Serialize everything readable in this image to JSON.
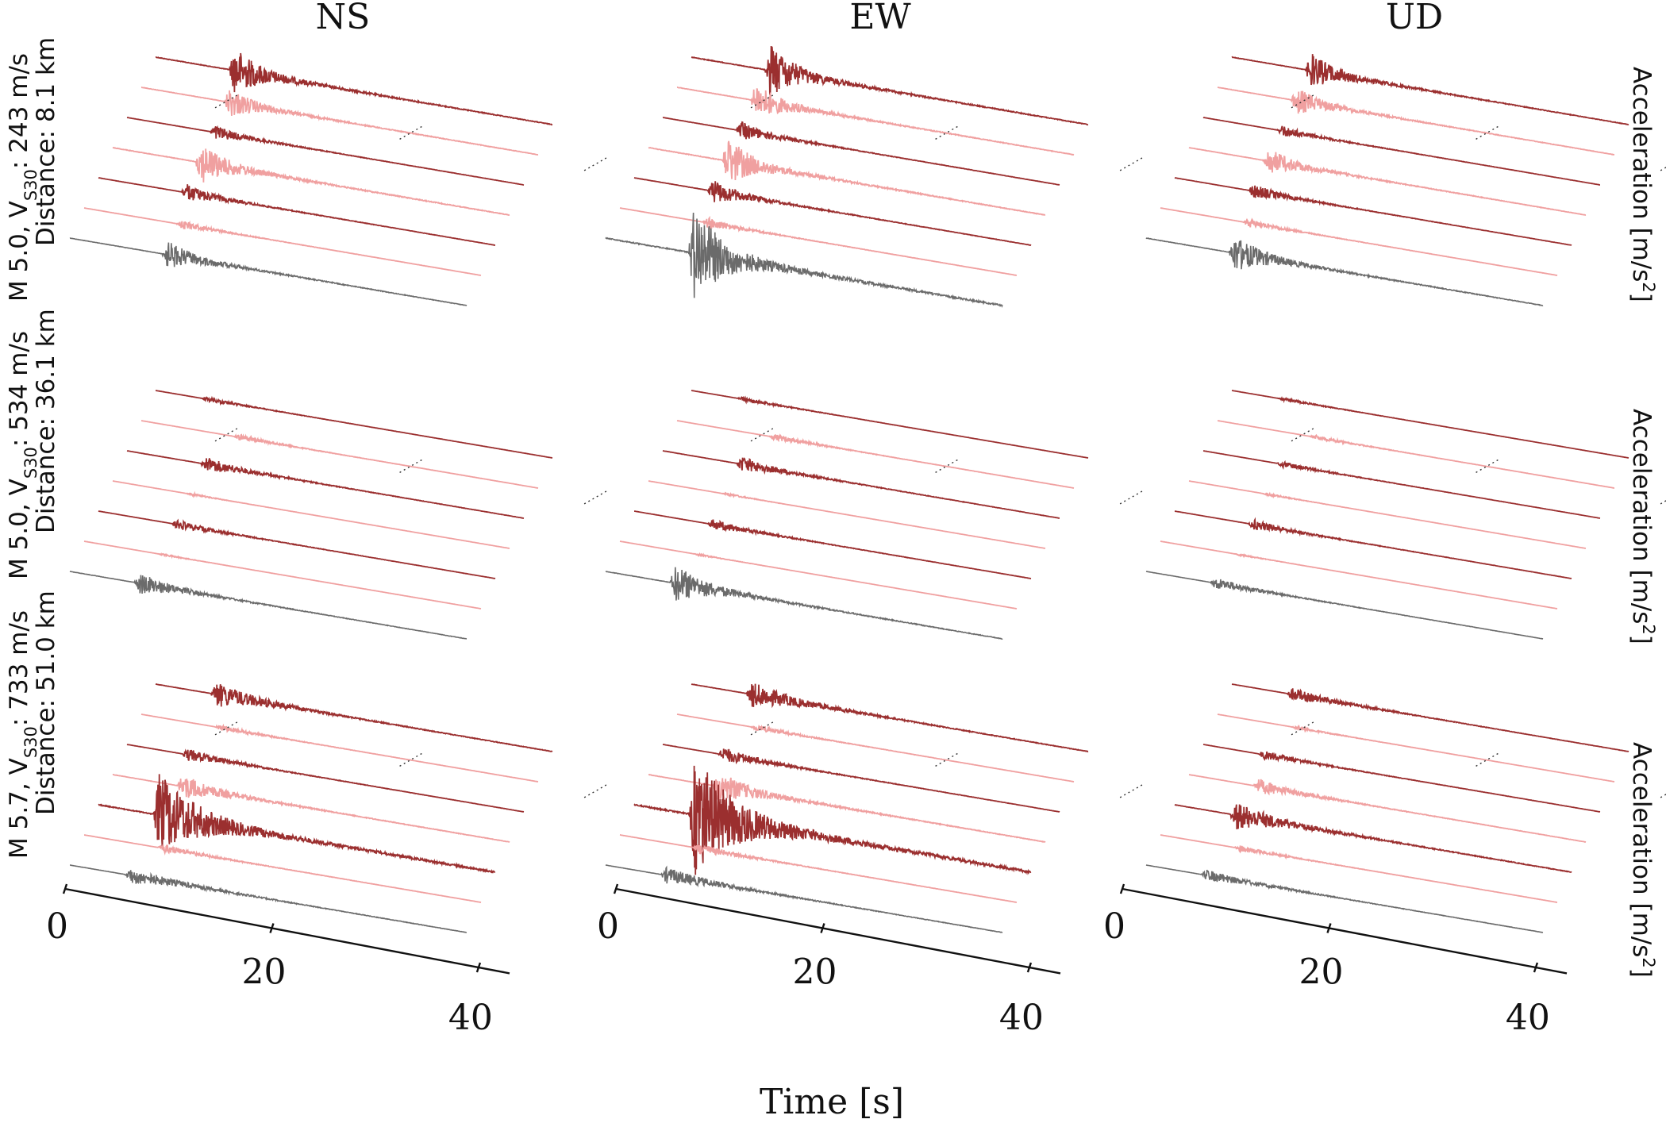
{
  "chart_data": {
    "type": "line",
    "column_titles": [
      "NS",
      "EW",
      "UD"
    ],
    "xlabel": "Time [s]",
    "ylabel_line1": "Acceleration [m/s",
    "ylabel_sup": "2",
    "ylabel_line2": "]",
    "x_ticks": [
      0,
      20,
      40
    ],
    "x_tick_labels": [
      "0",
      "20",
      "40"
    ],
    "xlim": [
      0,
      43
    ],
    "colors": {
      "reference": "#6b6b6b",
      "dark": "#9b2f2f",
      "light": "#f0a0a0",
      "axis": "#111111"
    },
    "rows": [
      {
        "label_line1": "M 5.0, V",
        "label_sub": "S30",
        "label_after_sub": ": 243 m/s",
        "label_line2": "Distance: 8.1 km",
        "traces": [
          {
            "color": "reference",
            "onset": [
              10,
              9,
              9
            ],
            "amp": [
              0.9,
              3.2,
              1.2
            ],
            "dur": 9
          },
          {
            "color": "light",
            "onset": [
              10,
              9,
              9
            ],
            "amp": [
              0.3,
              0.4,
              0.3
            ],
            "dur": 8
          },
          {
            "color": "dark",
            "onset": [
              9,
              8,
              8
            ],
            "amp": [
              0.6,
              0.8,
              0.5
            ],
            "dur": 8
          },
          {
            "color": "light",
            "onset": [
              9,
              8,
              8
            ],
            "amp": [
              1.4,
              1.6,
              0.9
            ],
            "dur": 8
          },
          {
            "color": "dark",
            "onset": [
              9,
              8,
              8
            ],
            "amp": [
              0.5,
              0.6,
              0.4
            ],
            "dur": 8
          },
          {
            "color": "light",
            "onset": [
              9,
              8,
              8
            ],
            "amp": [
              1.0,
              1.2,
              0.9
            ],
            "dur": 8
          },
          {
            "color": "dark",
            "onset": [
              8,
              8,
              8
            ],
            "amp": [
              1.6,
              1.8,
              1.2
            ],
            "dur": 8
          }
        ]
      },
      {
        "label_line1": "M 5.0, V",
        "label_sub": "S30",
        "label_after_sub": ": 534 m/s",
        "label_line2": "Distance: 36.1 km",
        "traces": [
          {
            "color": "reference",
            "onset": [
              7,
              7,
              7
            ],
            "amp": [
              0.7,
              1.2,
              0.4
            ],
            "dur": 10
          },
          {
            "color": "light",
            "onset": [
              8,
              8,
              8
            ],
            "amp": [
              0.08,
              0.08,
              0.08
            ],
            "dur": 6
          },
          {
            "color": "dark",
            "onset": [
              8,
              8,
              8
            ],
            "amp": [
              0.3,
              0.35,
              0.35
            ],
            "dur": 10
          },
          {
            "color": "light",
            "onset": [
              8,
              8,
              8
            ],
            "amp": [
              0.1,
              0.1,
              0.1
            ],
            "dur": 6
          },
          {
            "color": "dark",
            "onset": [
              8,
              8,
              8
            ],
            "amp": [
              0.5,
              0.5,
              0.2
            ],
            "dur": 10
          },
          {
            "color": "light",
            "onset": [
              10,
              10,
              10
            ],
            "amp": [
              0.2,
              0.2,
              0.15
            ],
            "dur": 10
          },
          {
            "color": "dark",
            "onset": [
              5,
              5,
              5
            ],
            "amp": [
              0.15,
              0.15,
              0.1
            ],
            "dur": 10
          }
        ]
      },
      {
        "label_line1": "M 5.7, V",
        "label_sub": "S30",
        "label_after_sub": ": 733 m/s",
        "label_line2": "Distance: 51.0 km",
        "traces": [
          {
            "color": "reference",
            "onset": [
              6,
              6,
              6
            ],
            "amp": [
              0.5,
              0.5,
              0.35
            ],
            "dur": 14
          },
          {
            "color": "light",
            "onset": [
              8,
              8,
              8
            ],
            "amp": [
              0.3,
              0.35,
              0.2
            ],
            "dur": 10
          },
          {
            "color": "dark",
            "onset": [
              6,
              6,
              6
            ],
            "amp": [
              2.6,
              3.8,
              0.9
            ],
            "dur": 12
          },
          {
            "color": "light",
            "onset": [
              7,
              7,
              7
            ],
            "amp": [
              0.8,
              1.0,
              0.5
            ],
            "dur": 10
          },
          {
            "color": "dark",
            "onset": [
              6,
              6,
              6
            ],
            "amp": [
              0.4,
              0.5,
              0.3
            ],
            "dur": 10
          },
          {
            "color": "light",
            "onset": [
              8,
              8,
              8
            ],
            "amp": [
              0.2,
              0.2,
              0.1
            ],
            "dur": 10
          },
          {
            "color": "dark",
            "onset": [
              6,
              6,
              6
            ],
            "amp": [
              0.8,
              0.8,
              0.4
            ],
            "dur": 12
          }
        ]
      }
    ]
  }
}
